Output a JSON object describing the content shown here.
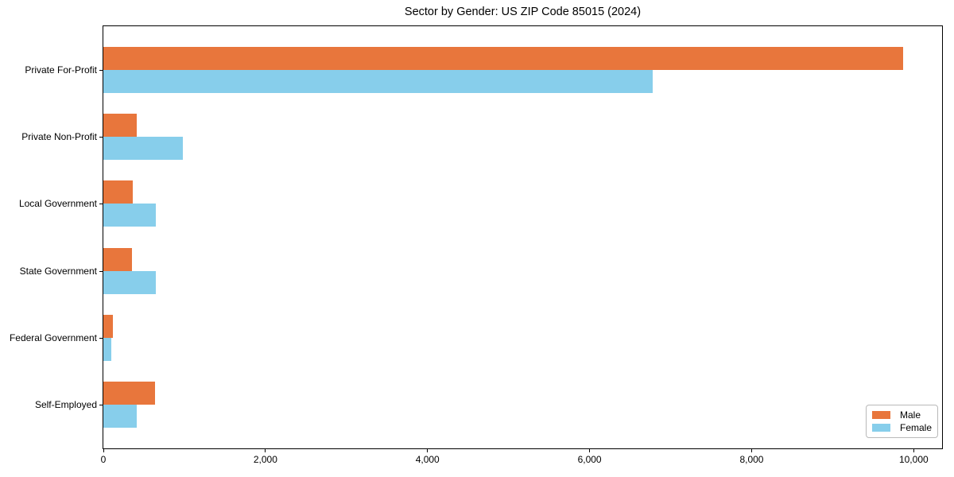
{
  "title": "Sector by Gender: US ZIP Code 85015 (2024)",
  "colors": {
    "male": "#e8763c",
    "female": "#87ceeb",
    "axis": "#000000",
    "legend_border": "#b9b9b9",
    "background": "#ffffff"
  },
  "chart_data": {
    "type": "bar",
    "orientation": "horizontal",
    "title": "Sector by Gender: US ZIP Code 85015 (2024)",
    "xlabel": "",
    "ylabel": "",
    "categories": [
      "Private For-Profit",
      "Private Non-Profit",
      "Local Government",
      "State Government",
      "Federal Government",
      "Self-Employed"
    ],
    "series": [
      {
        "name": "Male",
        "color": "#e8763c",
        "values": [
          9870,
          410,
          360,
          350,
          120,
          640
        ]
      },
      {
        "name": "Female",
        "color": "#87ceeb",
        "values": [
          6780,
          985,
          650,
          650,
          100,
          410
        ]
      }
    ],
    "xlim": [
      0,
      10350
    ],
    "x_ticks": [
      0,
      2000,
      4000,
      6000,
      8000,
      10000
    ],
    "x_tick_labels": [
      "0",
      "2,000",
      "4,000",
      "6,000",
      "8,000",
      "10,000"
    ],
    "grid": false,
    "legend_position": "lower right"
  }
}
